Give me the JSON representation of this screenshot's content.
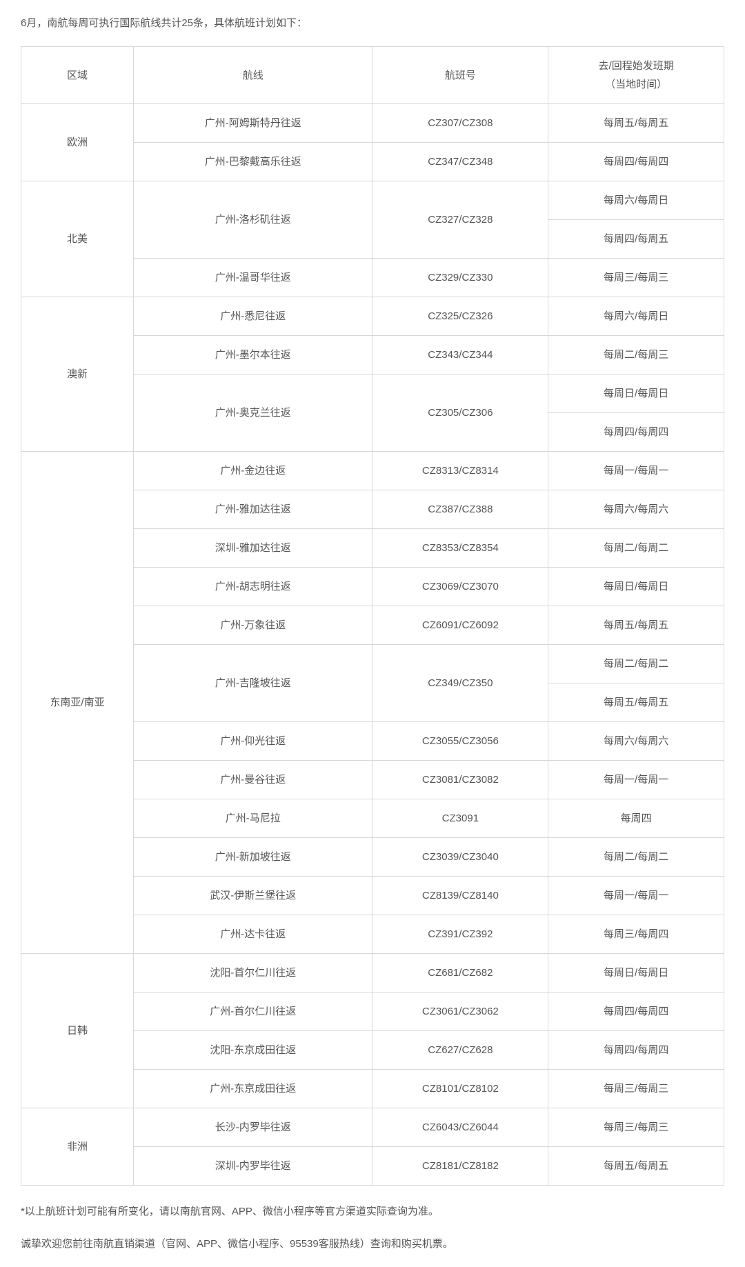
{
  "intro": "6月，南航每周可执行国际航线共计25条，具体航班计划如下：",
  "headers": {
    "region": "区域",
    "route": "航线",
    "flightNo": "航班号",
    "schedule_line1": "去/回程始发班期",
    "schedule_line2": "（当地时间）"
  },
  "regions": [
    {
      "name": "欧洲",
      "rows": [
        {
          "route": "广州-阿姆斯特丹往返",
          "flight": "CZ307/CZ308",
          "schedule": "每周五/每周五"
        },
        {
          "route": "广州-巴黎戴高乐往返",
          "flight": "CZ347/CZ348",
          "schedule": "每周四/每周四"
        }
      ]
    },
    {
      "name": "北美",
      "rows": [
        {
          "route": "广州-洛杉矶往返",
          "flight": "CZ327/CZ328",
          "schedule": "每周六/每周日",
          "routeRowspan": 2,
          "flightRowspan": 2
        },
        {
          "schedule": "每周四/每周五",
          "scheduleOnly": true
        },
        {
          "route": "广州-温哥华往返",
          "flight": "CZ329/CZ330",
          "schedule": "每周三/每周三"
        }
      ]
    },
    {
      "name": "澳新",
      "rows": [
        {
          "route": "广州-悉尼往返",
          "flight": "CZ325/CZ326",
          "schedule": "每周六/每周日"
        },
        {
          "route": "广州-墨尔本往返",
          "flight": "CZ343/CZ344",
          "schedule": "每周二/每周三"
        },
        {
          "route": "广州-奥克兰往返",
          "flight": "CZ305/CZ306",
          "schedule": "每周日/每周日",
          "routeRowspan": 2,
          "flightRowspan": 2
        },
        {
          "schedule": "每周四/每周四",
          "scheduleOnly": true
        }
      ]
    },
    {
      "name": "东南亚/南亚",
      "rows": [
        {
          "route": "广州-金边往返",
          "flight": "CZ8313/CZ8314",
          "schedule": "每周一/每周一"
        },
        {
          "route": "广州-雅加达往返",
          "flight": "CZ387/CZ388",
          "schedule": "每周六/每周六"
        },
        {
          "route": "深圳-雅加达往返",
          "flight": "CZ8353/CZ8354",
          "schedule": "每周二/每周二"
        },
        {
          "route": "广州-胡志明往返",
          "flight": "CZ3069/CZ3070",
          "schedule": "每周日/每周日"
        },
        {
          "route": "广州-万象往返",
          "flight": "CZ6091/CZ6092",
          "schedule": "每周五/每周五"
        },
        {
          "route": "广州-吉隆坡往返",
          "flight": "CZ349/CZ350",
          "schedule": "每周二/每周二",
          "routeRowspan": 2,
          "flightRowspan": 2
        },
        {
          "schedule": "每周五/每周五",
          "scheduleOnly": true
        },
        {
          "route": "广州-仰光往返",
          "flight": "CZ3055/CZ3056",
          "schedule": "每周六/每周六"
        },
        {
          "route": "广州-曼谷往返",
          "flight": "CZ3081/CZ3082",
          "schedule": "每周一/每周一"
        },
        {
          "route": "广州-马尼拉",
          "flight": "CZ3091",
          "schedule": "每周四"
        },
        {
          "route": "广州-新加坡往返",
          "flight": "CZ3039/CZ3040",
          "schedule": "每周二/每周二"
        },
        {
          "route": "武汉-伊斯兰堡往返",
          "flight": "CZ8139/CZ8140",
          "schedule": "每周一/每周一"
        },
        {
          "route": "广州-达卡往返",
          "flight": "CZ391/CZ392",
          "schedule": "每周三/每周四"
        }
      ]
    },
    {
      "name": "日韩",
      "rows": [
        {
          "route": "沈阳-首尔仁川往返",
          "flight": "CZ681/CZ682",
          "schedule": "每周日/每周日"
        },
        {
          "route": "广州-首尔仁川往返",
          "flight": "CZ3061/CZ3062",
          "schedule": "每周四/每周四"
        },
        {
          "route": "沈阳-东京成田往返",
          "flight": "CZ627/CZ628",
          "schedule": "每周四/每周四"
        },
        {
          "route": "广州-东京成田往返",
          "flight": "CZ8101/CZ8102",
          "schedule": "每周三/每周三"
        }
      ]
    },
    {
      "name": "非洲",
      "rows": [
        {
          "route": "长沙-内罗毕往返",
          "flight": "CZ6043/CZ6044",
          "schedule": "每周三/每周三"
        },
        {
          "route": "深圳-内罗毕往返",
          "flight": "CZ8181/CZ8182",
          "schedule": "每周五/每周五"
        }
      ]
    }
  ],
  "note": "*以上航班计划可能有所变化，请以南航官网、APP、微信小程序等官方渠道实际查询为准。",
  "closing": "诚挚欢迎您前往南航直销渠道（官网、APP、微信小程序、95539客服热线）查询和购买机票。",
  "columnWidths": [
    "16%",
    "34%",
    "25%",
    "25%"
  ]
}
